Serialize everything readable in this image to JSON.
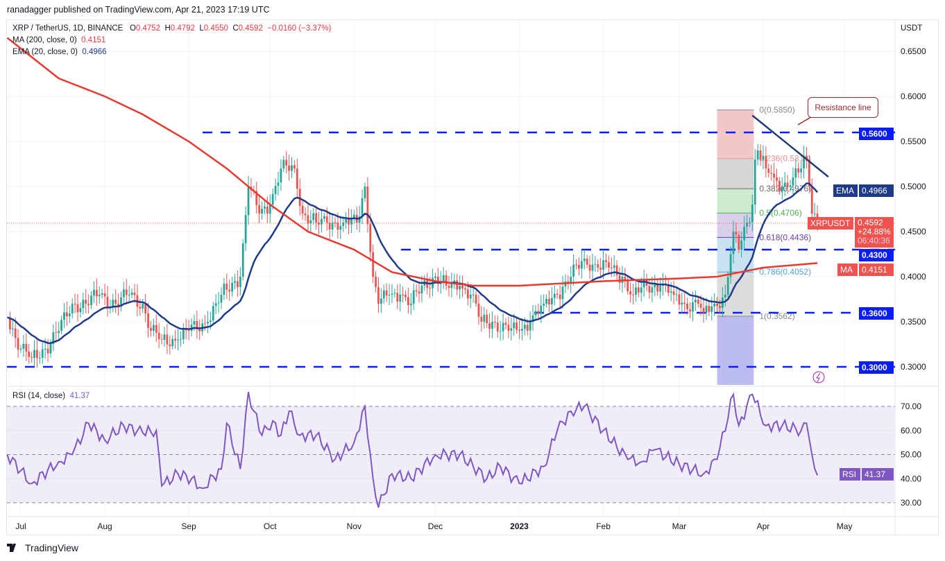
{
  "publisher_line": "ranadagger published on TradingView.com, Apr 21, 2023 17:19 UTC",
  "legend": {
    "symbol": "XRP / TetherUS, 1D, BINANCE",
    "open_label": "O",
    "open": "0.4752",
    "high_label": "H",
    "high": "0.4792",
    "low_label": "L",
    "low": "0.4550",
    "close_label": "C",
    "close": "0.4592",
    "change": "−0.0160 (−3.37%)",
    "ma_label": "MA (200, close, 0)",
    "ma_value": "0.4151",
    "ema_label": "EMA (20, close, 0)",
    "ema_value": "0.4966",
    "rsi_label": "RSI (14, close)",
    "rsi_value": "41.37"
  },
  "currency": "USDT",
  "tags": {
    "ema_name": "EMA",
    "ema_value": "0.4966",
    "price_name": "XRPUSDT",
    "price_value": "0.4592",
    "price_change": "+24.88%",
    "countdown": "06:40:36",
    "ma_name": "MA",
    "ma_value": "0.4151",
    "rsi_name": "RSI",
    "rsi_value": "41.37",
    "level_056": "0.5600",
    "level_043": "0.4300",
    "level_036": "0.3600",
    "level_030": "0.3000"
  },
  "annotation": "Resistance line",
  "footer_brand": "TradingView",
  "colors": {
    "up": "#26a69a",
    "down": "#ef5350",
    "ema": "#1e3a8a",
    "ma": "#e8392f",
    "rsi": "#7e57c2",
    "levels": "#0a1ef0"
  },
  "chart_data": {
    "type": "candlestick",
    "price_axis": {
      "ticks": [
        "0.6500",
        "0.6000",
        "0.5500",
        "0.5000",
        "0.4500",
        "0.4000",
        "0.3500",
        "0.3000"
      ],
      "ylim": [
        0.285,
        0.665
      ],
      "scale": "linear"
    },
    "time_axis": {
      "ticks": [
        "Jul",
        "Aug",
        "Sep",
        "Oct",
        "Nov",
        "Dec",
        "2023",
        "Feb",
        "Mar",
        "Apr",
        "May"
      ]
    },
    "grid": true,
    "close_keypoints": [
      [
        "2022-06-26",
        0.355
      ],
      [
        "2022-07-01",
        0.32
      ],
      [
        "2022-07-05",
        0.31
      ],
      [
        "2022-07-10",
        0.32
      ],
      [
        "2022-07-15",
        0.34
      ],
      [
        "2022-07-20",
        0.37
      ],
      [
        "2022-07-25",
        0.37
      ],
      [
        "2022-07-30",
        0.38
      ],
      [
        "2022-08-05",
        0.37
      ],
      [
        "2022-08-10",
        0.38
      ],
      [
        "2022-08-15",
        0.37
      ],
      [
        "2022-08-18",
        0.34
      ],
      [
        "2022-08-22",
        0.33
      ],
      [
        "2022-08-28",
        0.33
      ],
      [
        "2022-09-01",
        0.34
      ],
      [
        "2022-09-08",
        0.35
      ],
      [
        "2022-09-13",
        0.38
      ],
      [
        "2022-09-20",
        0.4
      ],
      [
        "2022-09-23",
        0.5
      ],
      [
        "2022-09-27",
        0.47
      ],
      [
        "2022-10-01",
        0.48
      ],
      [
        "2022-10-05",
        0.52
      ],
      [
        "2022-10-10",
        0.52
      ],
      [
        "2022-10-13",
        0.47
      ],
      [
        "2022-10-18",
        0.46
      ],
      [
        "2022-10-22",
        0.46
      ],
      [
        "2022-10-28",
        0.46
      ],
      [
        "2022-11-02",
        0.46
      ],
      [
        "2022-11-05",
        0.5
      ],
      [
        "2022-11-08",
        0.4
      ],
      [
        "2022-11-10",
        0.37
      ],
      [
        "2022-11-14",
        0.38
      ],
      [
        "2022-11-18",
        0.38
      ],
      [
        "2022-11-22",
        0.37
      ],
      [
        "2022-11-26",
        0.39
      ],
      [
        "2022-12-01",
        0.4
      ],
      [
        "2022-12-05",
        0.39
      ],
      [
        "2022-12-10",
        0.39
      ],
      [
        "2022-12-14",
        0.38
      ],
      [
        "2022-12-18",
        0.35
      ],
      [
        "2022-12-22",
        0.35
      ],
      [
        "2022-12-28",
        0.34
      ],
      [
        "2023-01-01",
        0.34
      ],
      [
        "2023-01-05",
        0.35
      ],
      [
        "2023-01-10",
        0.37
      ],
      [
        "2023-01-15",
        0.38
      ],
      [
        "2023-01-20",
        0.4
      ],
      [
        "2023-01-25",
        0.42
      ],
      [
        "2023-01-30",
        0.41
      ],
      [
        "2023-02-03",
        0.41
      ],
      [
        "2023-02-08",
        0.4
      ],
      [
        "2023-02-12",
        0.38
      ],
      [
        "2023-02-17",
        0.39
      ],
      [
        "2023-02-22",
        0.39
      ],
      [
        "2023-02-27",
        0.38
      ],
      [
        "2023-03-03",
        0.37
      ],
      [
        "2023-03-08",
        0.37
      ],
      [
        "2023-03-10",
        0.36
      ],
      [
        "2023-03-14",
        0.37
      ],
      [
        "2023-03-18",
        0.38
      ],
      [
        "2023-03-21",
        0.45
      ],
      [
        "2023-03-23",
        0.43
      ],
      [
        "2023-03-26",
        0.46
      ],
      [
        "2023-03-28",
        0.48
      ],
      [
        "2023-03-29",
        0.53
      ],
      [
        "2023-03-30",
        0.54
      ],
      [
        "2023-04-02",
        0.52
      ],
      [
        "2023-04-05",
        0.51
      ],
      [
        "2023-04-08",
        0.5
      ],
      [
        "2023-04-12",
        0.51
      ],
      [
        "2023-04-15",
        0.52
      ],
      [
        "2023-04-17",
        0.53
      ],
      [
        "2023-04-18",
        0.5
      ],
      [
        "2023-04-19",
        0.47
      ],
      [
        "2023-04-20",
        0.47
      ],
      [
        "2023-04-21",
        0.4592
      ]
    ],
    "ma200": [
      [
        "2022-06-26",
        0.665
      ],
      [
        "2022-07-15",
        0.62
      ],
      [
        "2022-08-01",
        0.6
      ],
      [
        "2022-08-15",
        0.58
      ],
      [
        "2022-09-01",
        0.55
      ],
      [
        "2022-09-15",
        0.52
      ],
      [
        "2022-10-01",
        0.48
      ],
      [
        "2022-10-15",
        0.45
      ],
      [
        "2022-11-01",
        0.43
      ],
      [
        "2022-11-15",
        0.405
      ],
      [
        "2022-12-01",
        0.395
      ],
      [
        "2022-12-15",
        0.39
      ],
      [
        "2023-01-01",
        0.39
      ],
      [
        "2023-02-01",
        0.395
      ],
      [
        "2023-03-01",
        0.398
      ],
      [
        "2023-03-15",
        0.4
      ],
      [
        "2023-04-01",
        0.41
      ],
      [
        "2023-04-21",
        0.4151
      ]
    ],
    "ema20_last": 0.4966,
    "horizontal_levels": [
      0.56,
      0.43,
      0.36,
      0.3
    ],
    "fibonacci": {
      "start": "2023-03-15",
      "end": "2023-03-28",
      "levels": [
        {
          "ratio": "0",
          "price": 0.585,
          "label": "0(0.5850)"
        },
        {
          "ratio": "0.236",
          "price": 0.531,
          "label": "0.236(0.5310)"
        },
        {
          "ratio": "0.382",
          "price": 0.4976,
          "label": "0.382(0.4976)"
        },
        {
          "ratio": "0.5",
          "price": 0.4706,
          "label": "0.5(0.4706)"
        },
        {
          "ratio": "0.618",
          "price": 0.4436,
          "label": "0.618(0.4436)"
        },
        {
          "ratio": "0.786",
          "price": 0.4052,
          "label": "0.786(0.4052)"
        },
        {
          "ratio": "1",
          "price": 0.3562,
          "label": "1(0.3562)"
        }
      ]
    },
    "resistance_line": [
      [
        "2023-03-28",
        0.585
      ],
      [
        "2023-04-23",
        0.52
      ]
    ],
    "rsi": {
      "axis_ticks": [
        "70.00",
        "60.00",
        "50.00",
        "40.00",
        "30.00"
      ],
      "ylim": [
        25,
        78
      ],
      "bands": [
        30,
        50,
        70
      ],
      "keypoints": [
        [
          "2022-06-26",
          50
        ],
        [
          "2022-07-05",
          38
        ],
        [
          "2022-07-15",
          47
        ],
        [
          "2022-07-20",
          50
        ],
        [
          "2022-07-26",
          63
        ],
        [
          "2022-08-01",
          56
        ],
        [
          "2022-08-08",
          62
        ],
        [
          "2022-08-15",
          59
        ],
        [
          "2022-08-20",
          60
        ],
        [
          "2022-08-22",
          37
        ],
        [
          "2022-08-28",
          42
        ],
        [
          "2022-09-02",
          40
        ],
        [
          "2022-09-06",
          36
        ],
        [
          "2022-09-13",
          44
        ],
        [
          "2022-09-15",
          63
        ],
        [
          "2022-09-20",
          44
        ],
        [
          "2022-09-23",
          76
        ],
        [
          "2022-09-25",
          68
        ],
        [
          "2022-09-28",
          58
        ],
        [
          "2022-10-02",
          64
        ],
        [
          "2022-10-05",
          58
        ],
        [
          "2022-10-08",
          68
        ],
        [
          "2022-10-12",
          58
        ],
        [
          "2022-10-18",
          58
        ],
        [
          "2022-10-25",
          48
        ],
        [
          "2022-11-01",
          55
        ],
        [
          "2022-11-05",
          70
        ],
        [
          "2022-11-08",
          40
        ],
        [
          "2022-11-10",
          28
        ],
        [
          "2022-11-15",
          42
        ],
        [
          "2022-11-22",
          40
        ],
        [
          "2022-12-01",
          50
        ],
        [
          "2022-12-10",
          50
        ],
        [
          "2022-12-20",
          40
        ],
        [
          "2022-12-25",
          45
        ],
        [
          "2023-01-01",
          38
        ],
        [
          "2023-01-10",
          45
        ],
        [
          "2023-01-15",
          60
        ],
        [
          "2023-01-20",
          68
        ],
        [
          "2023-01-25",
          70
        ],
        [
          "2023-02-01",
          60
        ],
        [
          "2023-02-10",
          48
        ],
        [
          "2023-02-15",
          47
        ],
        [
          "2023-02-20",
          52
        ],
        [
          "2023-03-01",
          46
        ],
        [
          "2023-03-10",
          42
        ],
        [
          "2023-03-15",
          48
        ],
        [
          "2023-03-21",
          75
        ],
        [
          "2023-03-23",
          62
        ],
        [
          "2023-03-28",
          75
        ],
        [
          "2023-04-02",
          62
        ],
        [
          "2023-04-08",
          62
        ],
        [
          "2023-04-15",
          60
        ],
        [
          "2023-04-17",
          63
        ],
        [
          "2023-04-19",
          50
        ],
        [
          "2023-04-21",
          41.37
        ]
      ]
    }
  }
}
